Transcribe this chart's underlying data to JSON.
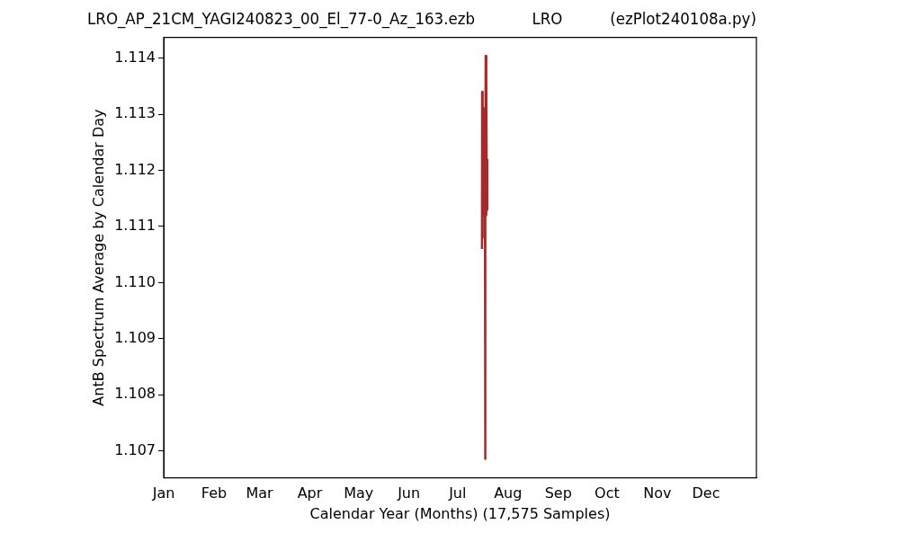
{
  "chart_data": {
    "type": "line",
    "title": "LRO_AP_21CM_YAGI240823_00_El_77-0_Az_163.ezb            LRO          (ezPlot240108a.py)",
    "xlabel": "Calendar Year (Months) (17,575 Samples)",
    "ylabel": "AntB Spectrum Average by Calendar Day",
    "x": [
      "--07-16T00:00",
      "--07-16T02:24",
      "--07-16T07:12",
      "--07-16T12:00",
      "--07-16T19:12",
      "--07-17T04:48",
      "--07-17T12:00",
      "--07-17T19:12",
      "--07-18T00:00",
      "--07-18T02:24",
      "--07-18T07:12",
      "--07-18T12:00",
      "--07-18T19:12",
      "--07-19T00:00",
      "--07-19T07:12"
    ],
    "series": [
      {
        "color": "#a52a2a",
        "values": [
          1.1106,
          1.1134,
          1.1108,
          1.1126,
          1.1112,
          1.1131,
          1.1113,
          1.1125,
          1.10686,
          1.112,
          1.11404,
          1.1112,
          1.1136,
          1.1113,
          1.1122
        ]
      }
    ],
    "xlim": [
      "--01-01",
      "--12-31T23:59"
    ],
    "xticks": [
      {
        "value": "--01-01",
        "label": "Jan"
      },
      {
        "value": "--02-01",
        "label": "Feb"
      },
      {
        "value": "--03-01",
        "label": "Mar"
      },
      {
        "value": "--04-01",
        "label": "Apr"
      },
      {
        "value": "--05-01",
        "label": "May"
      },
      {
        "value": "--06-01",
        "label": "Jun"
      },
      {
        "value": "--07-01",
        "label": "Jul"
      },
      {
        "value": "--08-01",
        "label": "Aug"
      },
      {
        "value": "--09-01",
        "label": "Sep"
      },
      {
        "value": "--10-01",
        "label": "Oct"
      },
      {
        "value": "--11-01",
        "label": "Nov"
      },
      {
        "value": "--12-01",
        "label": "Dec"
      }
    ],
    "ylim": [
      1.10652,
      1.11437
    ],
    "yticks": [
      {
        "value": 1.107,
        "label": "1.107"
      },
      {
        "value": 1.108,
        "label": "1.108"
      },
      {
        "value": 1.109,
        "label": "1.109"
      },
      {
        "value": 1.11,
        "label": "1.110"
      },
      {
        "value": 1.111,
        "label": "1.111"
      },
      {
        "value": 1.112,
        "label": "1.112"
      },
      {
        "value": 1.113,
        "label": "1.113"
      },
      {
        "value": 1.114,
        "label": "1.114"
      }
    ],
    "grid": false,
    "legend": false,
    "marker": "none",
    "line_style": "solid"
  }
}
